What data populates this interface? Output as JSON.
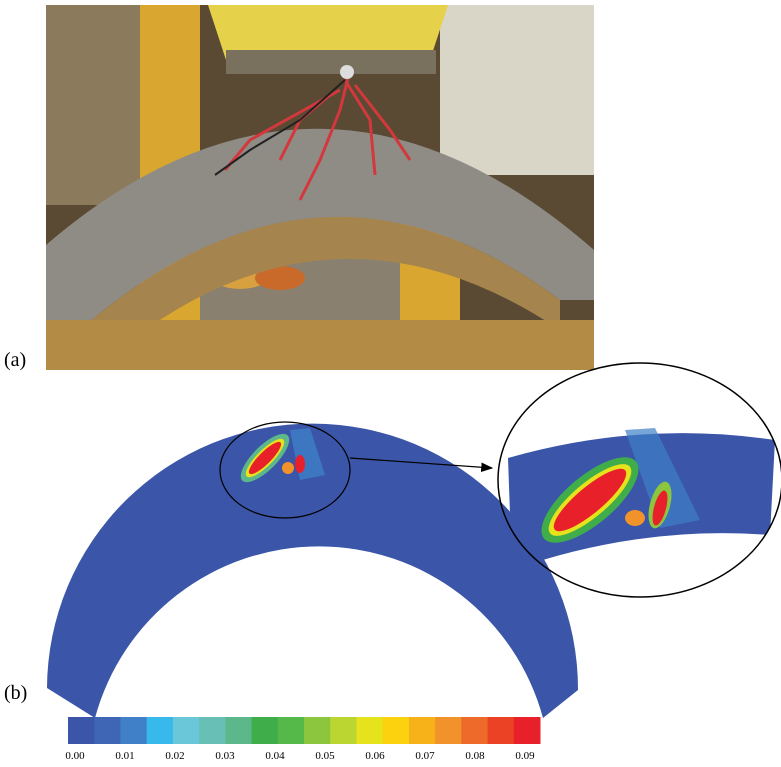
{
  "panels": {
    "a": {
      "label": "(a)"
    },
    "b": {
      "label": "(b)"
    }
  },
  "colorbar": {
    "colors": [
      "#3b55a8",
      "#3f66b5",
      "#3f80c8",
      "#37b9ec",
      "#6ac6d9",
      "#67bfb5",
      "#5cb88a",
      "#3fae4a",
      "#54b948",
      "#8cc63e",
      "#bcd631",
      "#e6e21c",
      "#fcd20f",
      "#f7b21a",
      "#f2922a",
      "#ee6a2a",
      "#eb4124",
      "#e8202a"
    ],
    "ticks": [
      {
        "value": 0,
        "label": "0.00"
      },
      {
        "value": 0.01,
        "label": "0.01"
      },
      {
        "value": 0.02,
        "label": "0.02"
      },
      {
        "value": 0.03,
        "label": "0.03"
      },
      {
        "value": 0.04,
        "label": "0.04"
      },
      {
        "value": 0.05,
        "label": "0.05"
      },
      {
        "value": 0.06,
        "label": "0.06"
      },
      {
        "value": 0.07,
        "label": "0.07"
      },
      {
        "value": 0.08,
        "label": "0.08"
      },
      {
        "value": 0.09,
        "label": "0.09"
      }
    ]
  }
}
